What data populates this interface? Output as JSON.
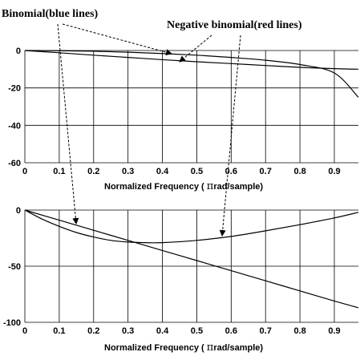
{
  "annotations": {
    "binomial": "Binomial(blue  lines)",
    "negative_binomial": "Negative binomial(red  lines)",
    "pi_symbol": "π"
  },
  "chart_data": [
    {
      "type": "line",
      "xlabel": "Normalized Frequency  ( πrad/sample)",
      "xlabel_parts": {
        "before": "Normalized Frequency  ( ",
        "after": "rad/sample)"
      },
      "ylabel": "",
      "xlim": [
        0,
        0.97
      ],
      "ylim": [
        -60,
        0
      ],
      "xticks": [
        "0",
        "0.1",
        "0.2",
        "0.3",
        "0.4",
        "0.5",
        "0.6",
        "0.7",
        "0.8",
        "0.9"
      ],
      "yticks": [
        "0",
        "-20",
        "-40",
        "-60"
      ],
      "grid": true,
      "series": [
        {
          "x": [
            0,
            0.1,
            0.2,
            0.3,
            0.4,
            0.5,
            0.6,
            0.7,
            0.8,
            0.9,
            0.97
          ],
          "values": [
            0,
            -0.1,
            -0.4,
            -0.9,
            -1.6,
            -2.5,
            -3.7,
            -5.2,
            -7.5,
            -12,
            -25
          ]
        },
        {
          "x": [
            0,
            0.1,
            0.2,
            0.3,
            0.4,
            0.5,
            0.6,
            0.7,
            0.8,
            0.9,
            0.97
          ],
          "values": [
            0,
            -1.2,
            -2.5,
            -3.7,
            -4.9,
            -6,
            -7,
            -8,
            -9,
            -9.7,
            -10
          ]
        }
      ]
    },
    {
      "type": "line",
      "xlabel": "Normalized Frequency  ( πrad/sample)",
      "xlabel_parts": {
        "before": "Normalized Frequency  ( ",
        "after": "rad/sample)"
      },
      "ylabel": "",
      "xlim": [
        0,
        0.97
      ],
      "ylim": [
        -100,
        0
      ],
      "xticks": [
        "0",
        "0.1",
        "0.2",
        "0.3",
        "0.4",
        "0.5",
        "0.6",
        "0.7",
        "0.8",
        "0.9"
      ],
      "yticks": [
        "0",
        "-50",
        "-100"
      ],
      "grid": true,
      "series": [
        {
          "x": [
            0,
            0.05,
            0.1,
            0.15,
            0.2,
            0.25,
            0.3,
            0.35,
            0.4,
            0.5,
            0.6,
            0.7,
            0.8,
            0.9,
            0.97
          ],
          "values": [
            0,
            -8,
            -14.5,
            -20,
            -24,
            -27,
            -28.5,
            -29,
            -29,
            -27,
            -23.5,
            -18.5,
            -13,
            -7,
            -2
          ]
        },
        {
          "x": [
            0,
            0.1,
            0.2,
            0.3,
            0.4,
            0.5,
            0.6,
            0.7,
            0.8,
            0.9,
            0.97
          ],
          "values": [
            0,
            -9,
            -18,
            -27,
            -36,
            -45,
            -54,
            -63,
            -72,
            -81,
            -87
          ]
        }
      ]
    }
  ]
}
